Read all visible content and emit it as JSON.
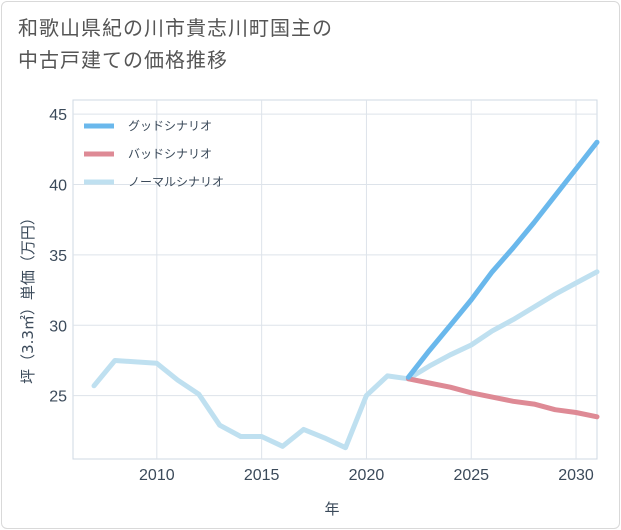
{
  "title": {
    "line1": "和歌山県紀の川市貴志川町国主の",
    "line2": "中古戸建ての価格推移"
  },
  "chart_data": {
    "type": "line",
    "xlabel": "年",
    "ylabel": "坪（3.3㎡）単価（万円）",
    "xlim": [
      2006,
      2031
    ],
    "ylim": [
      20.5,
      46
    ],
    "x_ticks": [
      2010,
      2015,
      2020,
      2025,
      2030
    ],
    "y_ticks": [
      25,
      30,
      35,
      40,
      45
    ],
    "grid": true,
    "legend_position": "top-left",
    "series": [
      {
        "name": "グッドシナリオ",
        "color": "#6ab8ec",
        "x": [
          2022,
          2023,
          2024,
          2025,
          2026,
          2027,
          2028,
          2029,
          2030,
          2031
        ],
        "y": [
          26.3,
          28.2,
          30.0,
          31.8,
          33.8,
          35.5,
          37.3,
          39.2,
          41.1,
          43.0
        ]
      },
      {
        "name": "バッドシナリオ",
        "color": "#de8a95",
        "x": [
          2022,
          2023,
          2024,
          2025,
          2026,
          2027,
          2028,
          2029,
          2030,
          2031
        ],
        "y": [
          26.2,
          25.9,
          25.6,
          25.2,
          24.9,
          24.6,
          24.4,
          24.0,
          23.8,
          23.5
        ]
      },
      {
        "name": "ノーマルシナリオ",
        "color": "#bfe0f0",
        "x": [
          2007,
          2008,
          2009,
          2010,
          2011,
          2012,
          2013,
          2014,
          2015,
          2016,
          2017,
          2018,
          2019,
          2020,
          2021,
          2022,
          2023,
          2024,
          2025,
          2026,
          2027,
          2028,
          2029,
          2030,
          2031
        ],
        "y": [
          25.7,
          27.5,
          27.4,
          27.3,
          26.1,
          25.1,
          22.9,
          22.1,
          22.1,
          21.4,
          22.6,
          22.0,
          21.3,
          25.0,
          26.4,
          26.2,
          27.1,
          27.9,
          28.6,
          29.6,
          30.4,
          31.3,
          32.2,
          33.0,
          33.8
        ]
      }
    ]
  }
}
